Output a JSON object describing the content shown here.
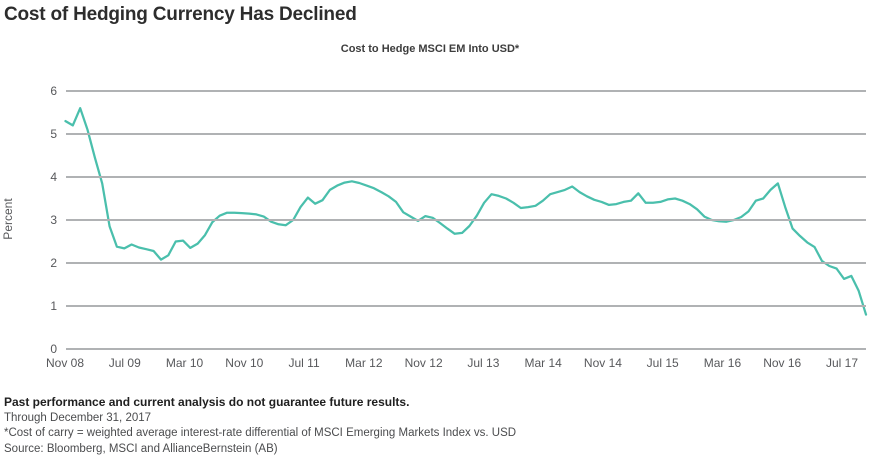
{
  "page": {
    "title": "Cost of Hedging Currency Has Declined",
    "subtitle": "Cost to Hedge MSCI EM Into USD*"
  },
  "chart_data": {
    "type": "line",
    "title": "Cost to Hedge MSCI EM Into USD*",
    "xlabel": "",
    "ylabel": "Percent",
    "ylim": [
      0,
      6
    ],
    "yticks": [
      0,
      1,
      2,
      3,
      4,
      5,
      6
    ],
    "xtick_labels": [
      "Nov 08",
      "Jul 09",
      "Mar 10",
      "Nov 10",
      "Jul 11",
      "Mar 12",
      "Nov 12",
      "Jul 13",
      "Mar 14",
      "Nov 14",
      "Jul 15",
      "Mar 16",
      "Nov 16",
      "Jul 17"
    ],
    "grid": "horizontal-only",
    "legend": "none",
    "line_color": "#4abfac",
    "series": [
      {
        "name": "Cost to hedge MSCI EM into USD (cost of carry, %)",
        "frequency": "monthly",
        "start": "Nov 2008",
        "end": "Dec 2017",
        "values": [
          5.3,
          5.2,
          5.6,
          5.1,
          4.45,
          3.85,
          2.85,
          2.38,
          2.34,
          2.43,
          2.36,
          2.32,
          2.28,
          2.08,
          2.18,
          2.5,
          2.52,
          2.35,
          2.45,
          2.65,
          2.95,
          3.1,
          3.17,
          3.17,
          3.16,
          3.15,
          3.13,
          3.08,
          2.96,
          2.9,
          2.88,
          3.0,
          3.3,
          3.52,
          3.38,
          3.46,
          3.7,
          3.8,
          3.87,
          3.9,
          3.86,
          3.8,
          3.74,
          3.65,
          3.55,
          3.42,
          3.18,
          3.08,
          2.98,
          3.09,
          3.05,
          2.93,
          2.8,
          2.68,
          2.7,
          2.86,
          3.1,
          3.4,
          3.6,
          3.56,
          3.5,
          3.4,
          3.28,
          3.3,
          3.33,
          3.45,
          3.6,
          3.65,
          3.7,
          3.78,
          3.65,
          3.55,
          3.47,
          3.42,
          3.35,
          3.37,
          3.42,
          3.45,
          3.62,
          3.4,
          3.4,
          3.42,
          3.48,
          3.5,
          3.45,
          3.37,
          3.25,
          3.08,
          3.0,
          2.97,
          2.96,
          3.0,
          3.07,
          3.2,
          3.45,
          3.5,
          3.7,
          3.85,
          3.3,
          2.8,
          2.63,
          2.48,
          2.37,
          2.05,
          1.93,
          1.87,
          1.63,
          1.7,
          1.35,
          0.8
        ]
      }
    ]
  },
  "footer": {
    "disclaimer": "Past performance and current analysis do not guarantee future results.",
    "through": "Through December 31, 2017",
    "footnote": "*Cost of carry = weighted average interest-rate differential of MSCI Emerging Markets Index vs. USD",
    "source": "Source: Bloomberg, MSCI and AllianceBernstein (AB)"
  }
}
